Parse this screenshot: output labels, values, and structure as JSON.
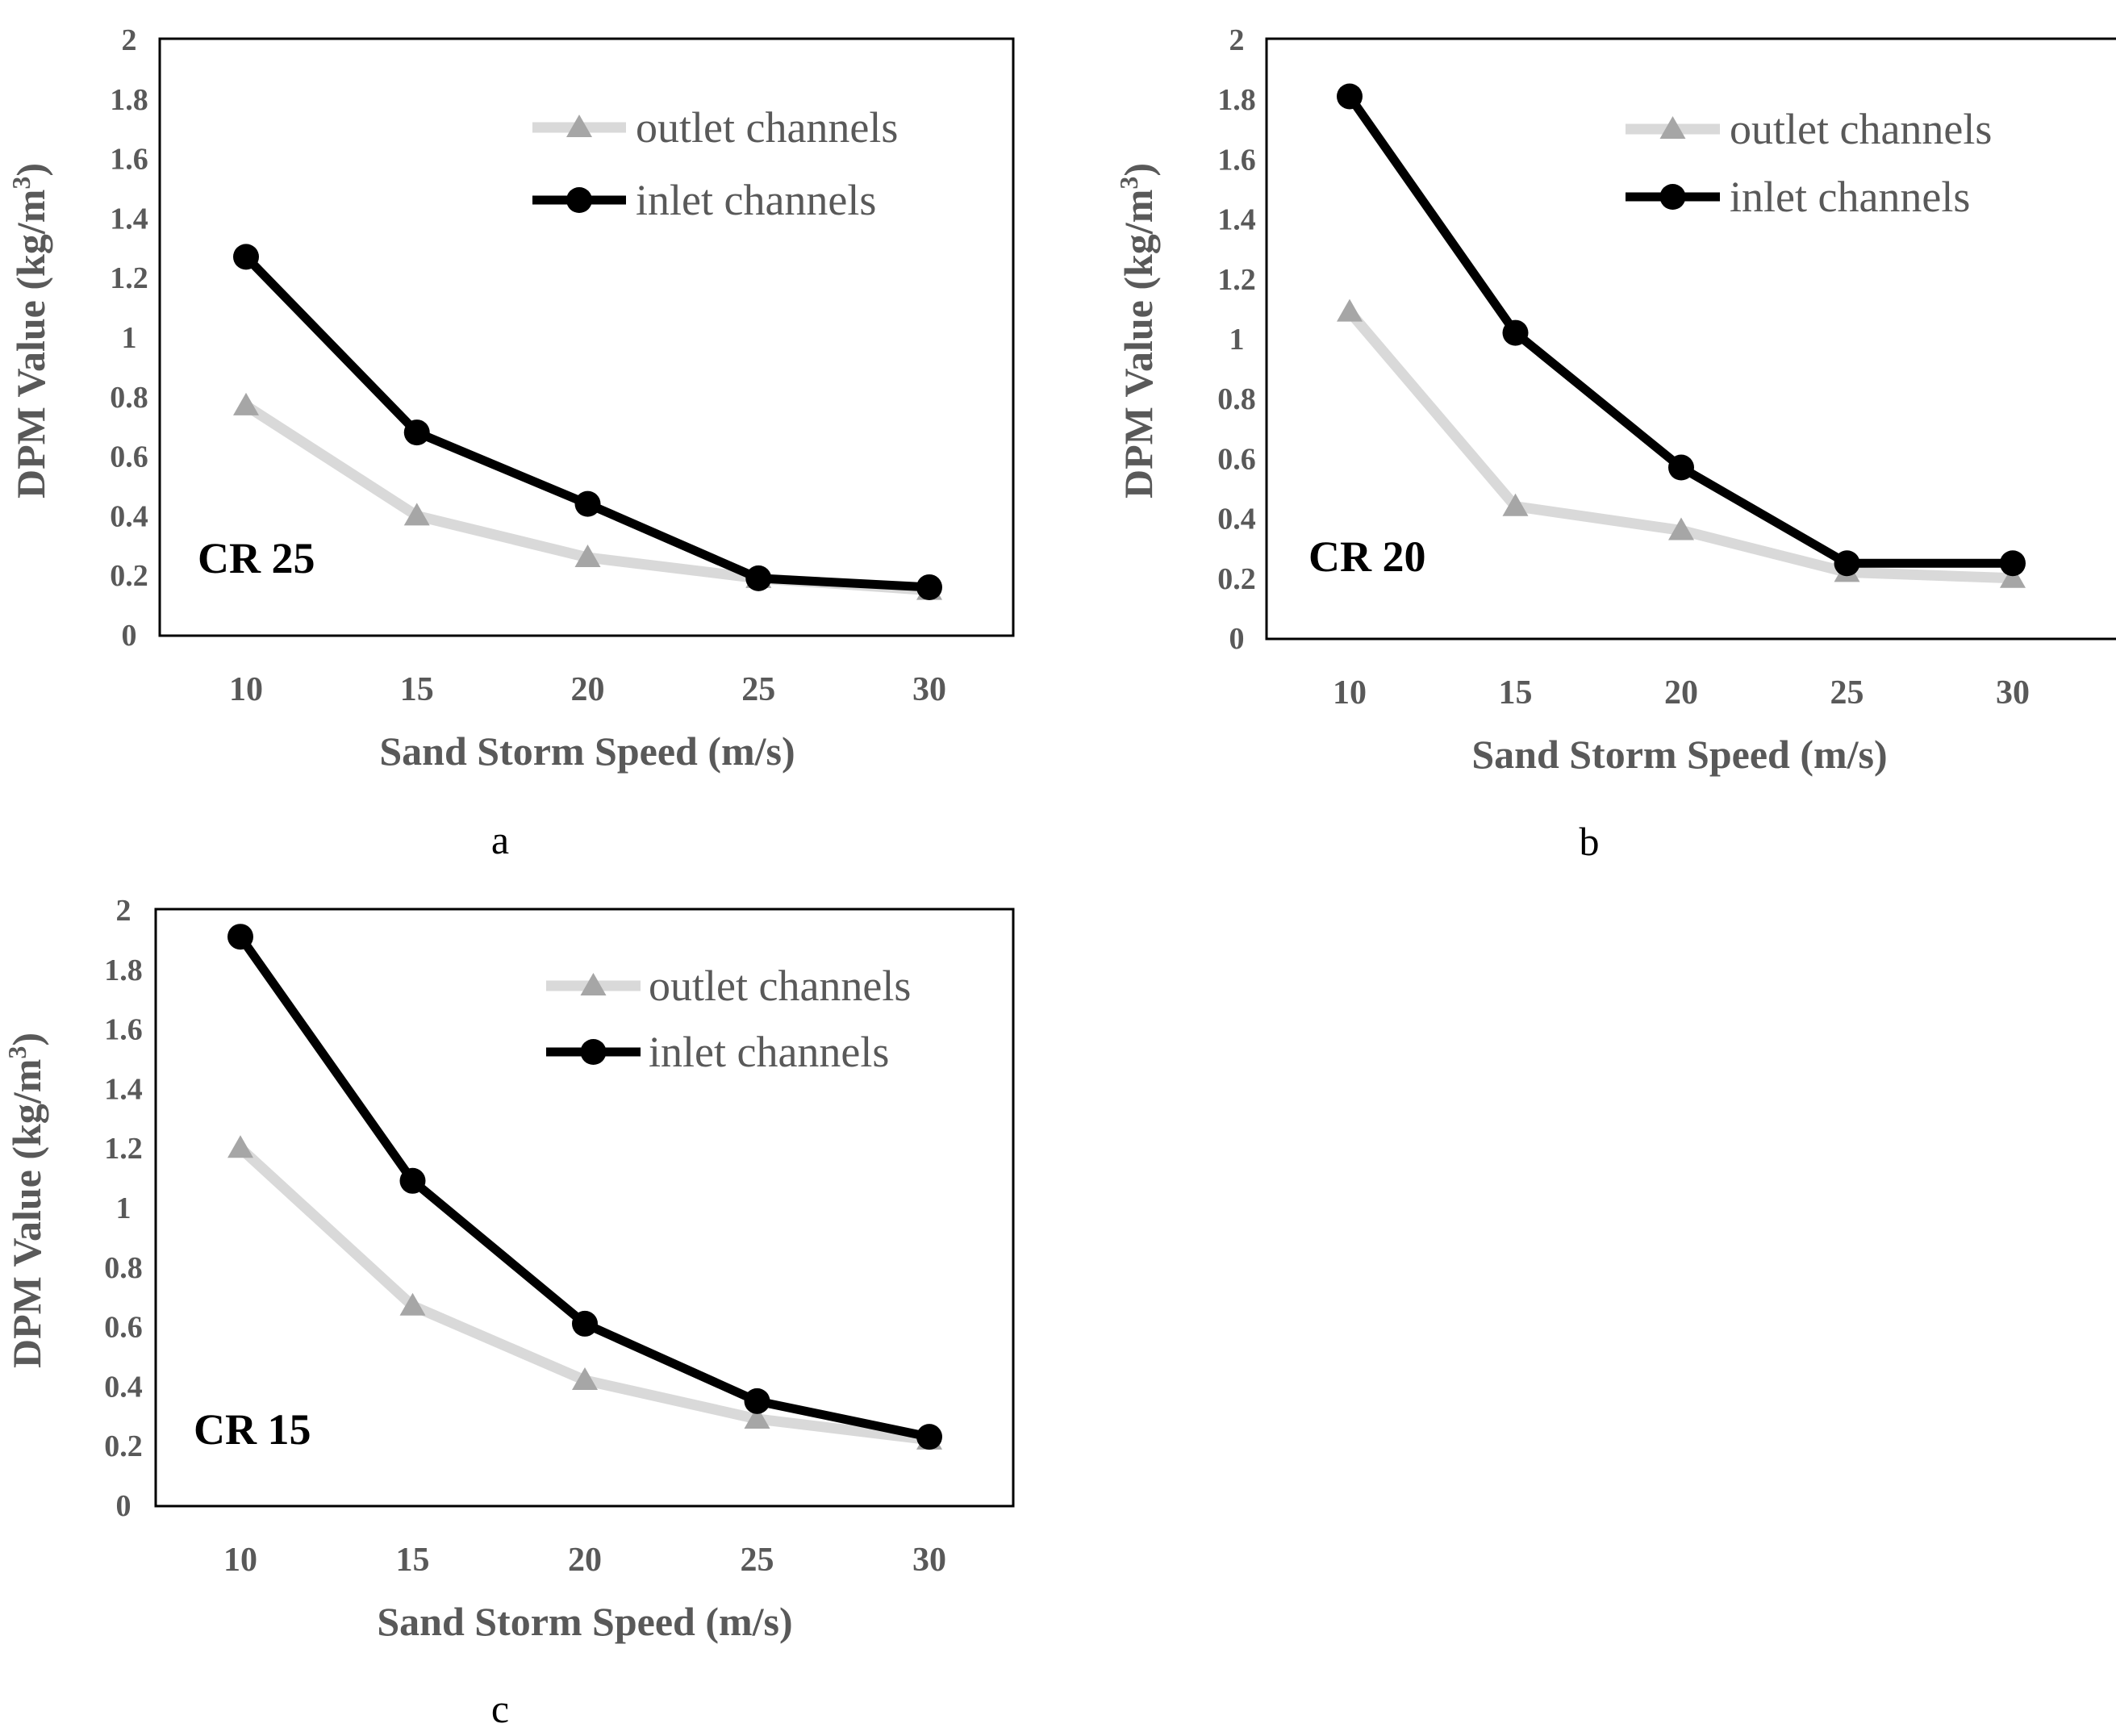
{
  "colors": {
    "outlet": "#d9d9d9",
    "outlet_marker": "#a6a6a6",
    "inlet": "#000000",
    "text": "#595959"
  },
  "chart_data": [
    {
      "type": "line",
      "caption": "a",
      "panel_label": "CR 25",
      "xlabel": "Sand Storm Speed (m/s)",
      "ylabel_main": "DPM Value (kg/m",
      "ylabel_sup": "3",
      "ylabel_close": ")",
      "x": [
        10,
        15,
        20,
        25,
        30
      ],
      "x_tick_labels": [
        "10",
        "15",
        "20",
        "25",
        "30"
      ],
      "ylim": [
        0,
        2
      ],
      "y_ticks": [
        0,
        0.2,
        0.4,
        0.6,
        0.8,
        1,
        1.2,
        1.4,
        1.6,
        1.8,
        2
      ],
      "y_tick_labels": [
        "0",
        "0.2",
        "0.4",
        "0.6",
        "0.8",
        "1",
        "1.2",
        "1.4",
        "1.6",
        "1.8",
        "2"
      ],
      "legend_position": "top-right",
      "series": [
        {
          "name": "outlet channels",
          "values": [
            0.77,
            0.4,
            0.26,
            0.19,
            0.15
          ]
        },
        {
          "name": "inlet channels",
          "values": [
            1.27,
            0.68,
            0.44,
            0.19,
            0.16
          ]
        }
      ]
    },
    {
      "type": "line",
      "caption": "b",
      "panel_label": "CR 20",
      "xlabel": "Sand Storm Speed (m/s)",
      "ylabel_main": "DPM Value (kg/m",
      "ylabel_sup": "3",
      "ylabel_close": ")",
      "x": [
        10,
        15,
        20,
        25,
        30
      ],
      "x_tick_labels": [
        "10",
        "15",
        "20",
        "25",
        "30"
      ],
      "ylim": [
        0,
        2
      ],
      "y_ticks": [
        0,
        0.2,
        0.4,
        0.6,
        0.8,
        1,
        1.2,
        1.4,
        1.6,
        1.8,
        2
      ],
      "y_tick_labels": [
        "0",
        "0.2",
        "0.4",
        "0.6",
        "0.8",
        "1",
        "1.2",
        "1.4",
        "1.6",
        "1.8",
        "2"
      ],
      "legend_position": "top-right",
      "series": [
        {
          "name": "outlet channels",
          "values": [
            1.09,
            0.44,
            0.36,
            0.22,
            0.2
          ]
        },
        {
          "name": "inlet channels",
          "values": [
            1.81,
            1.02,
            0.57,
            0.25,
            0.25
          ]
        }
      ]
    },
    {
      "type": "line",
      "caption": "c",
      "panel_label": "CR 15",
      "xlabel": "Sand Storm Speed (m/s)",
      "ylabel_main": "DPM Value (kg/m",
      "ylabel_sup": "3",
      "ylabel_close": ")",
      "x": [
        10,
        15,
        20,
        25,
        30
      ],
      "x_tick_labels": [
        "10",
        "15",
        "20",
        "25",
        "30"
      ],
      "ylim": [
        0,
        2
      ],
      "y_ticks": [
        0,
        0.2,
        0.4,
        0.6,
        0.8,
        1,
        1.2,
        1.4,
        1.6,
        1.8,
        2
      ],
      "y_tick_labels": [
        "0",
        "0.2",
        "0.4",
        "0.6",
        "0.8",
        "1",
        "1.2",
        "1.4",
        "1.6",
        "1.8",
        "2"
      ],
      "legend_position": "top-right",
      "series": [
        {
          "name": "outlet channels",
          "values": [
            1.2,
            0.67,
            0.42,
            0.29,
            0.22
          ]
        },
        {
          "name": "inlet channels",
          "values": [
            1.91,
            1.09,
            0.61,
            0.35,
            0.23
          ]
        }
      ]
    }
  ]
}
